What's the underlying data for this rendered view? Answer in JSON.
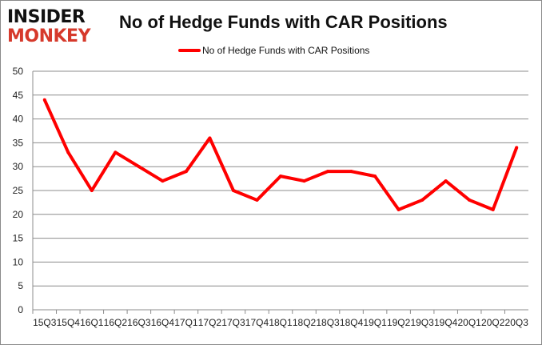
{
  "logo": {
    "line1": "INSIDER",
    "line2": "MONKEY"
  },
  "chart_data": {
    "type": "line",
    "title": "No of Hedge Funds with CAR Positions",
    "xlabel": "",
    "ylabel": "",
    "categories": [
      "15Q3",
      "15Q4",
      "16Q1",
      "16Q2",
      "16Q3",
      "16Q4",
      "17Q1",
      "17Q2",
      "17Q3",
      "17Q4",
      "18Q1",
      "18Q2",
      "18Q3",
      "18Q4",
      "19Q1",
      "19Q2",
      "19Q3",
      "19Q4",
      "20Q1",
      "20Q2",
      "20Q3"
    ],
    "series": [
      {
        "name": "No of Hedge Funds with CAR Positions",
        "color": "#ff0000",
        "values": [
          44,
          33,
          25,
          33,
          30,
          27,
          29,
          36,
          25,
          23,
          28,
          27,
          29,
          29,
          28,
          21,
          23,
          27,
          23,
          21,
          34
        ]
      }
    ],
    "ylim": [
      0,
      50
    ],
    "yticks": [
      0,
      5,
      10,
      15,
      20,
      25,
      30,
      35,
      40,
      45,
      50
    ],
    "grid": true,
    "legend": "top-center"
  }
}
